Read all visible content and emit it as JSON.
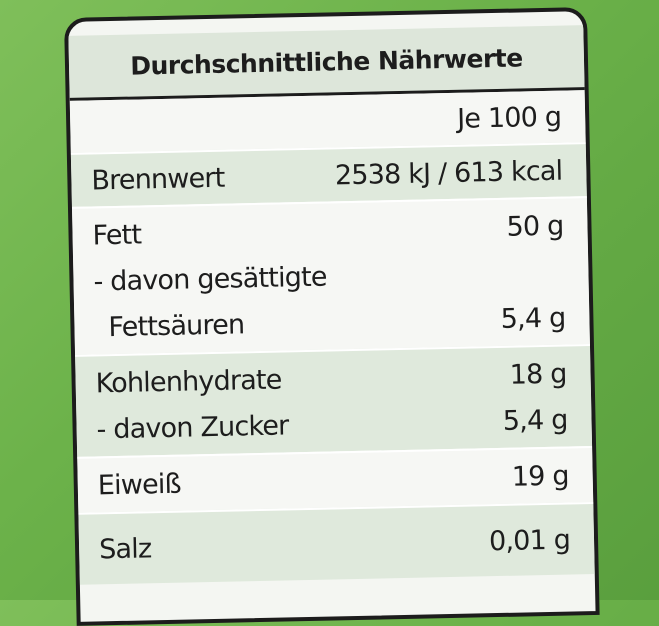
{
  "title": "Durchschnittliche Nährwerte",
  "column_header": "Je 100 g",
  "rows": [
    {
      "label": "Brennwert",
      "value": "2538 kJ / 613 kcal"
    },
    {
      "label": "Fett",
      "value": "50 g"
    },
    {
      "label": "- davon gesättigte",
      "value": ""
    },
    {
      "label": "Fettsäuren",
      "value": "5,4 g"
    },
    {
      "label": "Kohlenhydrate",
      "value": "18 g"
    },
    {
      "label": "- davon Zucker",
      "value": "5,4 g"
    },
    {
      "label": "Eiweiß",
      "value": "19 g"
    },
    {
      "label": "Salz",
      "value": "0,01 g"
    }
  ],
  "colors": {
    "background": "#6cb24a",
    "label": "#f4f6f2",
    "band": "#dfe9dc",
    "border": "#1c1c1c"
  }
}
